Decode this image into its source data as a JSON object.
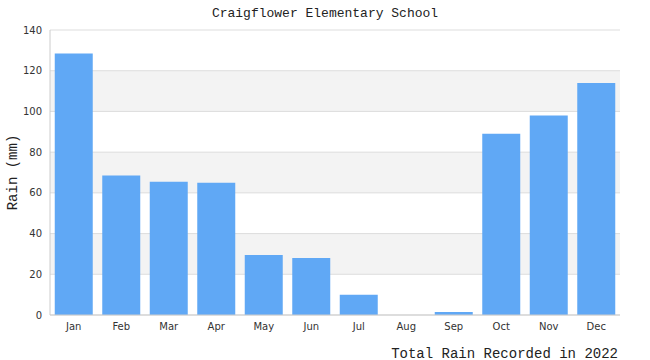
{
  "chart_data": {
    "type": "bar",
    "title": "Craigflower Elementary School",
    "ylabel": "Rain (mm)",
    "xlabel": "Total Rain Recorded in 2022",
    "categories": [
      "Jan",
      "Feb",
      "Mar",
      "Apr",
      "May",
      "Jun",
      "Jul",
      "Aug",
      "Sep",
      "Oct",
      "Nov",
      "Dec"
    ],
    "values": [
      128.5,
      68.5,
      65.5,
      65,
      29.5,
      28,
      10,
      0,
      1.5,
      89,
      98,
      114
    ],
    "color": "#60a8f5",
    "ylim": [
      0,
      140
    ],
    "yticks": [
      0,
      20,
      40,
      60,
      80,
      100,
      120,
      140
    ],
    "grid": true
  }
}
